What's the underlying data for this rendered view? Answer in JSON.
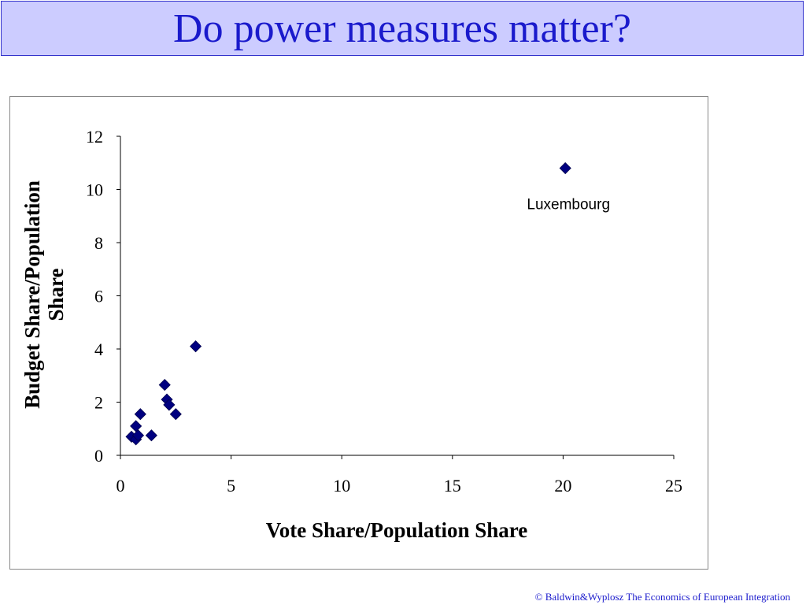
{
  "slide": {
    "title": "Do power measures matter?",
    "footer": "© Baldwin&Wyplosz The Economics of European Integration"
  },
  "colors": {
    "title_text": "#1a1acc",
    "title_bg": "#ccccff",
    "marker": "#000080"
  },
  "chart_data": {
    "type": "scatter",
    "xlabel": "Vote Share/Population Share",
    "ylabel": "Budget Share/Population Share",
    "xlim": [
      0,
      25
    ],
    "ylim": [
      0,
      12
    ],
    "xticks": [
      0,
      5,
      10,
      15,
      20,
      25
    ],
    "yticks": [
      0,
      2,
      4,
      6,
      8,
      10,
      12
    ],
    "grid": false,
    "marker": "diamond",
    "points": [
      {
        "x": 0.5,
        "y": 0.7
      },
      {
        "x": 0.7,
        "y": 0.6
      },
      {
        "x": 0.7,
        "y": 1.1
      },
      {
        "x": 0.8,
        "y": 0.75
      },
      {
        "x": 0.9,
        "y": 1.55
      },
      {
        "x": 1.4,
        "y": 0.75
      },
      {
        "x": 2.0,
        "y": 2.65
      },
      {
        "x": 2.1,
        "y": 2.1
      },
      {
        "x": 2.2,
        "y": 1.9
      },
      {
        "x": 2.5,
        "y": 1.55
      },
      {
        "x": 3.4,
        "y": 4.1
      },
      {
        "x": 20.1,
        "y": 10.8,
        "label": "Luxembourg"
      }
    ]
  }
}
